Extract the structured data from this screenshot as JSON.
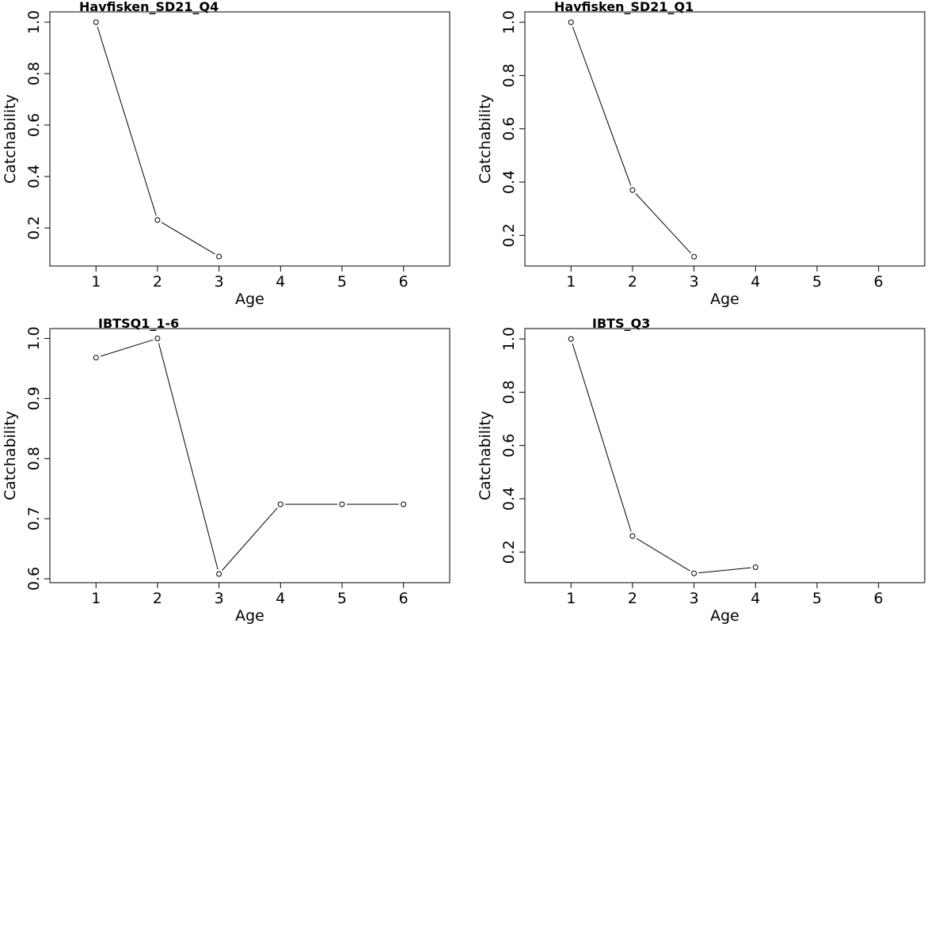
{
  "chart_data": [
    {
      "type": "line",
      "title": "Havfisken_SD21_Q4",
      "xlabel": "Age",
      "ylabel": "Catchability",
      "x": [
        1,
        2,
        3
      ],
      "values": [
        1.0,
        0.231,
        0.089
      ],
      "xticks": [
        1,
        2,
        3,
        4,
        5,
        6
      ],
      "yticks": [
        0.2,
        0.4,
        0.6,
        0.8,
        1.0
      ],
      "ytick_labels": [
        "0.2",
        "0.4",
        "0.6",
        "0.8",
        "1.0"
      ],
      "xlim": [
        0.25,
        6.75
      ],
      "ylim": [
        0.052,
        1.04
      ]
    },
    {
      "type": "line",
      "title": "Havfisken_SD21_Q1",
      "xlabel": "Age",
      "ylabel": "Catchability",
      "x": [
        1,
        2,
        3
      ],
      "values": [
        1.0,
        0.37,
        0.12
      ],
      "xticks": [
        1,
        2,
        3,
        4,
        5,
        6
      ],
      "yticks": [
        0.2,
        0.4,
        0.6,
        0.8,
        1.0
      ],
      "ytick_labels": [
        "0.2",
        "0.4",
        "0.6",
        "0.8",
        "1.0"
      ],
      "xlim": [
        0.25,
        6.75
      ],
      "ylim": [
        0.085,
        1.039
      ]
    },
    {
      "type": "line",
      "title": "IBTSQ1_1-6",
      "xlabel": "Age",
      "ylabel": "Catchability",
      "x": [
        1,
        2,
        3,
        4,
        5,
        6
      ],
      "values": [
        0.968,
        1.0,
        0.608,
        0.724,
        0.724,
        0.724
      ],
      "xticks": [
        1,
        2,
        3,
        4,
        5,
        6
      ],
      "yticks": [
        0.6,
        0.7,
        0.8,
        0.9,
        1.0
      ],
      "ytick_labels": [
        "0.6",
        "0.7",
        "0.8",
        "0.9",
        "1.0"
      ],
      "xlim": [
        0.25,
        6.75
      ],
      "ylim": [
        0.5935,
        1.0165
      ]
    },
    {
      "type": "line",
      "title": "IBTS_Q3",
      "xlabel": "Age",
      "ylabel": "Catchability",
      "x": [
        1,
        2,
        3,
        4
      ],
      "values": [
        1.0,
        0.26,
        0.12,
        0.143
      ],
      "xticks": [
        1,
        2,
        3,
        4,
        5,
        6
      ],
      "yticks": [
        0.2,
        0.4,
        0.6,
        0.8,
        1.0
      ],
      "ytick_labels": [
        "0.2",
        "0.4",
        "0.6",
        "0.8",
        "1.0"
      ],
      "xlim": [
        0.25,
        6.75
      ],
      "ylim": [
        0.085,
        1.039
      ]
    }
  ]
}
